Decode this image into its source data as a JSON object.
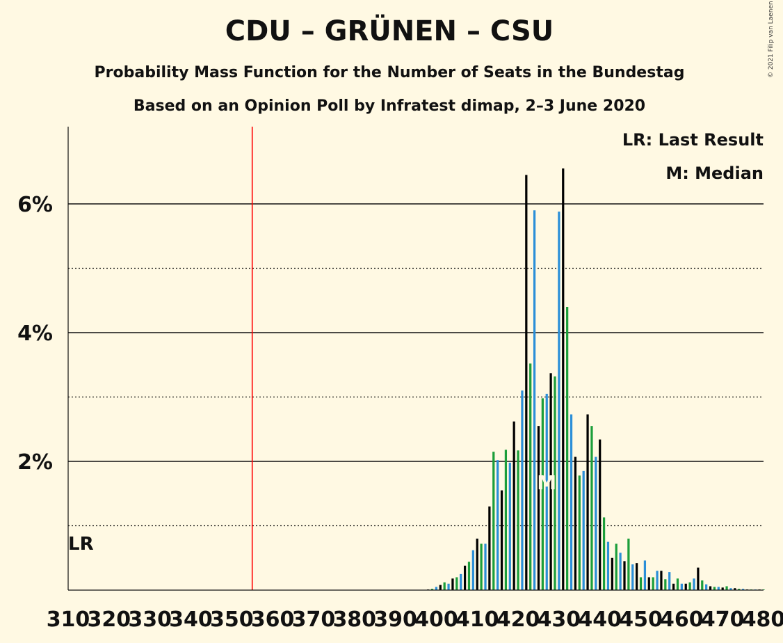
{
  "chart_data": {
    "type": "bar",
    "title": "CDU – GRÜNEN – CSU",
    "subtitle": "Probability Mass Function for the Number of Seats in the Bundestag",
    "subtitle2": "Based on an Opinion Poll by Infratest dimap, 2–3 June 2020",
    "copyright": "© 2021 Filip van Laenen",
    "legend": [
      "LR: Last Result",
      "M: Median"
    ],
    "legend_position": "top-right",
    "last_result": {
      "label": "LR",
      "seats": 355
    },
    "median": {
      "label": "M",
      "seats": 427
    },
    "xlim": [
      310,
      480
    ],
    "ylim": [
      0,
      7.2
    ],
    "x_ticks": [
      "310",
      "320",
      "330",
      "340",
      "350",
      "360",
      "370",
      "380",
      "390",
      "400",
      "410",
      "420",
      "430",
      "440",
      "450",
      "460",
      "470",
      "480"
    ],
    "y_ticks": [
      {
        "value": 2,
        "label": "2%"
      },
      {
        "value": 4,
        "label": "4%"
      },
      {
        "value": 6,
        "label": "6%"
      }
    ],
    "minor_gridlines": [
      1,
      3,
      5
    ],
    "series_colors": [
      "#000000",
      "#1B9E3A",
      "#2B8FD8"
    ],
    "bar_labels_visible": false,
    "x": [
      398,
      399,
      400,
      401,
      402,
      403,
      404,
      405,
      406,
      407,
      408,
      409,
      410,
      411,
      412,
      413,
      414,
      415,
      416,
      417,
      418,
      419,
      420,
      421,
      422,
      423,
      424,
      425,
      426,
      427,
      428,
      429,
      430,
      431,
      432,
      433,
      434,
      435,
      436,
      437,
      438,
      439,
      440,
      441,
      442,
      443,
      444,
      445,
      446,
      447,
      448,
      449,
      450,
      451,
      452,
      453,
      454,
      455,
      456,
      457,
      458,
      459,
      460,
      461,
      462,
      463,
      464,
      465,
      466,
      467,
      468,
      469,
      470,
      471,
      472,
      473,
      474,
      475,
      476,
      477,
      478,
      479,
      480
    ],
    "values": [
      0.01,
      0.02,
      0.05,
      0.08,
      0.12,
      0.1,
      0.18,
      0.2,
      0.25,
      0.38,
      0.44,
      0.62,
      0.8,
      0.72,
      0.72,
      1.3,
      2.15,
      2.02,
      1.55,
      2.18,
      1.98,
      2.62,
      2.17,
      3.1,
      6.45,
      3.52,
      5.9,
      2.55,
      2.98,
      3.05,
      3.37,
      3.32,
      5.88,
      6.55,
      4.4,
      2.73,
      2.07,
      1.78,
      1.85,
      2.73,
      2.55,
      2.07,
      2.34,
      1.13,
      0.75,
      0.5,
      0.72,
      0.58,
      0.45,
      0.8,
      0.4,
      0.42,
      0.2,
      0.46,
      0.2,
      0.2,
      0.3,
      0.3,
      0.17,
      0.28,
      0.1,
      0.18,
      0.1,
      0.1,
      0.12,
      0.18,
      0.35,
      0.15,
      0.09,
      0.06,
      0.05,
      0.05,
      0.04,
      0.06,
      0.03,
      0.03,
      0.02,
      0.02,
      0.01,
      0.01,
      0.01,
      0.01,
      0.01
    ]
  }
}
